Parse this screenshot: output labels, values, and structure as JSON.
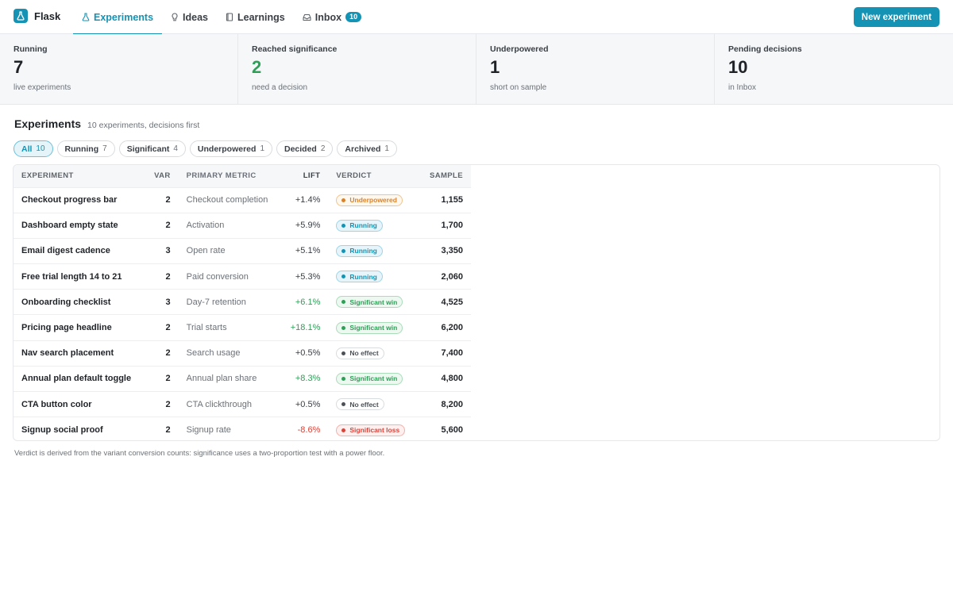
{
  "app": {
    "name": "Flask"
  },
  "nav": [
    {
      "label": "Experiments",
      "icon": "flask-icon",
      "active": true
    },
    {
      "label": "Ideas",
      "icon": "lightbulb-icon"
    },
    {
      "label": "Learnings",
      "icon": "book-icon"
    },
    {
      "label": "Inbox",
      "icon": "inbox-icon",
      "badge": "10"
    }
  ],
  "actions": {
    "new_experiment": "New experiment"
  },
  "stats": [
    {
      "label": "Running",
      "value": "7",
      "sub": "live experiments"
    },
    {
      "label": "Reached significance",
      "value": "2",
      "sub": "need a decision",
      "color": "#2e9f57"
    },
    {
      "label": "Underpowered",
      "value": "1",
      "sub": "short on sample"
    },
    {
      "label": "Pending decisions",
      "value": "10",
      "sub": "in Inbox"
    }
  ],
  "section": {
    "title": "Experiments",
    "subtitle": "10 experiments, decisions first"
  },
  "filters": [
    {
      "label": "All",
      "count": "10",
      "active": true
    },
    {
      "label": "Running",
      "count": "7"
    },
    {
      "label": "Significant",
      "count": "4"
    },
    {
      "label": "Underpowered",
      "count": "1"
    },
    {
      "label": "Decided",
      "count": "2"
    },
    {
      "label": "Archived",
      "count": "1"
    }
  ],
  "table": {
    "columns": [
      "Experiment",
      "Var",
      "Primary metric",
      "Lift",
      "Verdict",
      "Sample"
    ],
    "rows": [
      {
        "name": "Checkout progress bar",
        "var": "2",
        "metric": "Checkout completion",
        "lift": "+1.4%",
        "verdict": "Underpowered",
        "sample": "1,155"
      },
      {
        "name": "Dashboard empty state",
        "var": "2",
        "metric": "Activation",
        "lift": "+5.9%",
        "verdict": "Running",
        "sample": "1,700"
      },
      {
        "name": "Email digest cadence",
        "var": "3",
        "metric": "Open rate",
        "lift": "+5.1%",
        "verdict": "Running",
        "sample": "3,350"
      },
      {
        "name": "Free trial length 14 to 21",
        "var": "2",
        "metric": "Paid conversion",
        "lift": "+5.3%",
        "verdict": "Running",
        "sample": "2,060"
      },
      {
        "name": "Onboarding checklist",
        "var": "3",
        "metric": "Day-7 retention",
        "lift": "+6.1%",
        "verdict": "Significant win",
        "sample": "4,525"
      },
      {
        "name": "Pricing page headline",
        "var": "2",
        "metric": "Trial starts",
        "lift": "+18.1%",
        "verdict": "Significant win",
        "sample": "6,200"
      },
      {
        "name": "Nav search placement",
        "var": "2",
        "metric": "Search usage",
        "lift": "+0.5%",
        "verdict": "No effect",
        "sample": "7,400"
      },
      {
        "name": "Annual plan default toggle",
        "var": "2",
        "metric": "Annual plan share",
        "lift": "+8.3%",
        "verdict": "Significant win",
        "sample": "4,800"
      },
      {
        "name": "CTA button color",
        "var": "2",
        "metric": "CTA clickthrough",
        "lift": "+0.5%",
        "verdict": "No effect",
        "sample": "8,200"
      },
      {
        "name": "Signup social proof",
        "var": "2",
        "metric": "Signup rate",
        "lift": "-8.6%",
        "verdict": "Significant loss",
        "sample": "5,600"
      }
    ]
  },
  "footnote": "Verdict is derived from the variant conversion counts: significance uses a two-proportion test with a power floor.",
  "colors": {
    "accent": "#1493b5",
    "win": "#2e9f57",
    "loss": "#d9443a",
    "warn": "#d9822b"
  }
}
